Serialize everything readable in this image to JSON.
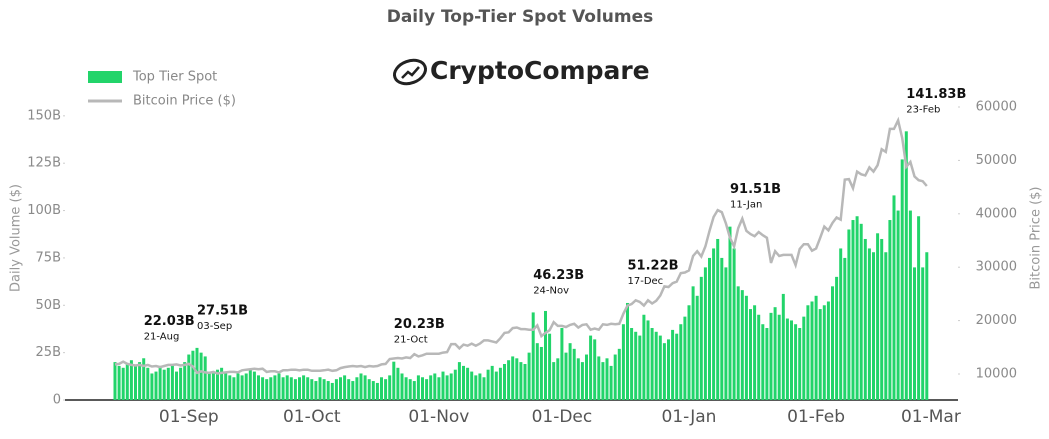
{
  "chart_data": {
    "type": "bar",
    "title": "Daily Top-Tier Spot Volumes",
    "brand": "CryptoCompare",
    "y_label": "Daily Volume ($)",
    "y2_label": "Bitcoin Price ($)",
    "legend": "top-left",
    "categories": [
      "14-Aug",
      "15-Aug",
      "16-Aug",
      "17-Aug",
      "18-Aug",
      "19-Aug",
      "20-Aug",
      "21-Aug",
      "22-Aug",
      "23-Aug",
      "24-Aug",
      "25-Aug",
      "26-Aug",
      "27-Aug",
      "28-Aug",
      "29-Aug",
      "30-Aug",
      "31-Aug",
      "01-Sep",
      "02-Sep",
      "03-Sep",
      "04-Sep",
      "05-Sep",
      "06-Sep",
      "07-Sep",
      "08-Sep",
      "09-Sep",
      "10-Sep",
      "11-Sep",
      "12-Sep",
      "13-Sep",
      "14-Sep",
      "15-Sep",
      "16-Sep",
      "17-Sep",
      "18-Sep",
      "19-Sep",
      "20-Sep",
      "21-Sep",
      "22-Sep",
      "23-Sep",
      "24-Sep",
      "25-Sep",
      "26-Sep",
      "27-Sep",
      "28-Sep",
      "29-Sep",
      "30-Sep",
      "01-Oct",
      "02-Oct",
      "03-Oct",
      "04-Oct",
      "05-Oct",
      "06-Oct",
      "07-Oct",
      "08-Oct",
      "09-Oct",
      "10-Oct",
      "11-Oct",
      "12-Oct",
      "13-Oct",
      "14-Oct",
      "15-Oct",
      "16-Oct",
      "17-Oct",
      "18-Oct",
      "19-Oct",
      "20-Oct",
      "21-Oct",
      "22-Oct",
      "23-Oct",
      "24-Oct",
      "25-Oct",
      "26-Oct",
      "27-Oct",
      "28-Oct",
      "29-Oct",
      "30-Oct",
      "31-Oct",
      "01-Nov",
      "02-Nov",
      "03-Nov",
      "04-Nov",
      "05-Nov",
      "06-Nov",
      "07-Nov",
      "08-Nov",
      "09-Nov",
      "10-Nov",
      "11-Nov",
      "12-Nov",
      "13-Nov",
      "14-Nov",
      "15-Nov",
      "16-Nov",
      "17-Nov",
      "18-Nov",
      "19-Nov",
      "20-Nov",
      "21-Nov",
      "22-Nov",
      "23-Nov",
      "24-Nov",
      "25-Nov",
      "26-Nov",
      "27-Nov",
      "28-Nov",
      "29-Nov",
      "30-Nov",
      "01-Dec",
      "02-Dec",
      "03-Dec",
      "04-Dec",
      "05-Dec",
      "06-Dec",
      "07-Dec",
      "08-Dec",
      "09-Dec",
      "10-Dec",
      "11-Dec",
      "12-Dec",
      "13-Dec",
      "14-Dec",
      "15-Dec",
      "16-Dec",
      "17-Dec",
      "18-Dec",
      "19-Dec",
      "20-Dec",
      "21-Dec",
      "22-Dec",
      "23-Dec",
      "24-Dec",
      "25-Dec",
      "26-Dec",
      "27-Dec",
      "28-Dec",
      "29-Dec",
      "30-Dec",
      "31-Dec",
      "01-Jan",
      "02-Jan",
      "03-Jan",
      "04-Jan",
      "05-Jan",
      "06-Jan",
      "07-Jan",
      "08-Jan",
      "09-Jan",
      "10-Jan",
      "11-Jan",
      "12-Jan",
      "13-Jan",
      "14-Jan",
      "15-Jan",
      "16-Jan",
      "17-Jan",
      "18-Jan",
      "19-Jan",
      "20-Jan",
      "21-Jan",
      "22-Jan",
      "23-Jan",
      "24-Jan",
      "25-Jan",
      "26-Jan",
      "27-Jan",
      "28-Jan",
      "29-Jan",
      "30-Jan",
      "31-Jan",
      "01-Feb",
      "02-Feb",
      "03-Feb",
      "04-Feb",
      "05-Feb",
      "06-Feb",
      "07-Feb",
      "08-Feb",
      "09-Feb",
      "10-Feb",
      "11-Feb",
      "12-Feb",
      "13-Feb",
      "14-Feb",
      "15-Feb",
      "16-Feb",
      "17-Feb",
      "18-Feb",
      "19-Feb",
      "20-Feb",
      "21-Feb",
      "22-Feb",
      "23-Feb",
      "24-Feb",
      "25-Feb",
      "26-Feb",
      "27-Feb",
      "28-Feb",
      "01-Mar"
    ],
    "series": [
      {
        "name": "Top Tier Spot",
        "color": "#22d46a",
        "type": "bar",
        "values": [
          20,
          18,
          17,
          19,
          21,
          18,
          20,
          22.03,
          17,
          14,
          15,
          18,
          16,
          17,
          19,
          15,
          17,
          20,
          24,
          26,
          27.51,
          25,
          23,
          15,
          14,
          16,
          17,
          15,
          13,
          12,
          14,
          13,
          14,
          16,
          15,
          13,
          12,
          11,
          12,
          13,
          14,
          12,
          13,
          12,
          11,
          12,
          13,
          12,
          11,
          10,
          12,
          11,
          10,
          9,
          11,
          12,
          13,
          11,
          10,
          12,
          14,
          13,
          11,
          10,
          9,
          12,
          11,
          13,
          20.23,
          17,
          14,
          12,
          11,
          10,
          13,
          12,
          11,
          13,
          14,
          12,
          15,
          13,
          14,
          16,
          20,
          18,
          17,
          15,
          13,
          14,
          12,
          16,
          18,
          15,
          17,
          19,
          21,
          23,
          22,
          20,
          19,
          25,
          46.23,
          30,
          28,
          47,
          35,
          20,
          22,
          38,
          25,
          30,
          27,
          22,
          20,
          24,
          34,
          32,
          23,
          20,
          22,
          18,
          24,
          27,
          40,
          51.22,
          38,
          36,
          34,
          45,
          42,
          38,
          36,
          34,
          30,
          32,
          37,
          35,
          40,
          44,
          50,
          60,
          55,
          65,
          70,
          75,
          80,
          85,
          75,
          70,
          91.51,
          80,
          60,
          58,
          55,
          48,
          50,
          45,
          40,
          38,
          46,
          49,
          45,
          56,
          43,
          42,
          40,
          38,
          44,
          50,
          52,
          55,
          48,
          50,
          52,
          60,
          65,
          80,
          75,
          90,
          95,
          97,
          93,
          85,
          80,
          78,
          88,
          85,
          78,
          95,
          108,
          100,
          127,
          141.83,
          100,
          70,
          97,
          70,
          78,
          null
        ]
      },
      {
        "name": "Bitcoin Price ($)",
        "color": "#b8b8b8",
        "type": "line",
        "axis": "y2",
        "values": [
          11800,
          11900,
          12300,
          11900,
          11700,
          11600,
          11700,
          11500,
          11700,
          11400,
          11500,
          11300,
          11500,
          11700,
          11700,
          11800,
          11600,
          11700,
          11900,
          11400,
          10200,
          10500,
          10300,
          10200,
          10400,
          10100,
          10200,
          10300,
          10400,
          10400,
          10300,
          10700,
          10800,
          10900,
          11000,
          10900,
          11000,
          10400,
          10500,
          10500,
          10300,
          10700,
          10700,
          10800,
          10800,
          10700,
          10800,
          10800,
          10600,
          10600,
          10600,
          10700,
          10800,
          10600,
          10700,
          11100,
          11300,
          11400,
          11500,
          11400,
          11500,
          11300,
          11500,
          11400,
          11500,
          11800,
          11900,
          12800,
          12900,
          13000,
          12900,
          13100,
          13000,
          13700,
          13300,
          13500,
          13800,
          13800,
          13800,
          13800,
          14000,
          14100,
          15600,
          15600,
          14800,
          15500,
          15300,
          15700,
          15300,
          15700,
          16300,
          16300,
          16100,
          15900,
          16700,
          17700,
          17800,
          18600,
          18700,
          18400,
          18400,
          18300,
          18300,
          19100,
          17100,
          17700,
          18200,
          19700,
          19000,
          19000,
          18800,
          19200,
          19400,
          18700,
          19200,
          19300,
          18300,
          18500,
          18300,
          19300,
          19200,
          19400,
          19300,
          19400,
          21300,
          22800,
          23100,
          23800,
          23500,
          22800,
          23800,
          23200,
          23700,
          24700,
          26400,
          26300,
          27000,
          27300,
          28900,
          29000,
          29400,
          32100,
          33000,
          32000,
          33900,
          36800,
          39400,
          40700,
          40300,
          38200,
          35500,
          33900,
          37300,
          39100,
          36800,
          36200,
          35800,
          36600,
          36000,
          35500,
          30800,
          33000,
          32100,
          32300,
          32300,
          32300,
          30400,
          33400,
          34300,
          34300,
          33100,
          33500,
          35500,
          37600,
          36900,
          38300,
          39300,
          38900,
          46400,
          46500,
          44800,
          47900,
          47400,
          47200,
          48700,
          47900,
          49100,
          52100,
          51600,
          55900,
          55900,
          57500,
          54200,
          48800,
          49700,
          47000,
          46300,
          46100,
          45200,
          null
        ]
      }
    ],
    "ylim": [
      0,
      161
    ],
    "yticks": [
      0,
      {
        "value": 25,
        "label": "25B"
      },
      {
        "value": 50,
        "label": "50B"
      },
      {
        "value": 75,
        "label": "75B"
      },
      {
        "value": 100,
        "label": "100B"
      },
      {
        "value": 125,
        "label": "125B"
      },
      {
        "value": 150,
        "label": "150B"
      }
    ],
    "y2lim": [
      5130,
      62250
    ],
    "y2ticks": [
      10000,
      20000,
      30000,
      40000,
      50000,
      60000
    ],
    "annotations": [
      {
        "label": "22.03B",
        "date": "21-Aug",
        "value": 22.03
      },
      {
        "label": "27.51B",
        "date": "03-Sep",
        "value": 27.51
      },
      {
        "label": "20.23B",
        "date": "21-Oct",
        "value": 20.23
      },
      {
        "label": "46.23B",
        "date": "24-Nov",
        "value": 46.23
      },
      {
        "label": "51.22B",
        "date": "17-Dec",
        "value": 51.22
      },
      {
        "label": "91.51B",
        "date": "11-Jan",
        "value": 91.51
      },
      {
        "label": "141.83B",
        "date": "23-Feb",
        "value": 141.83
      }
    ]
  }
}
